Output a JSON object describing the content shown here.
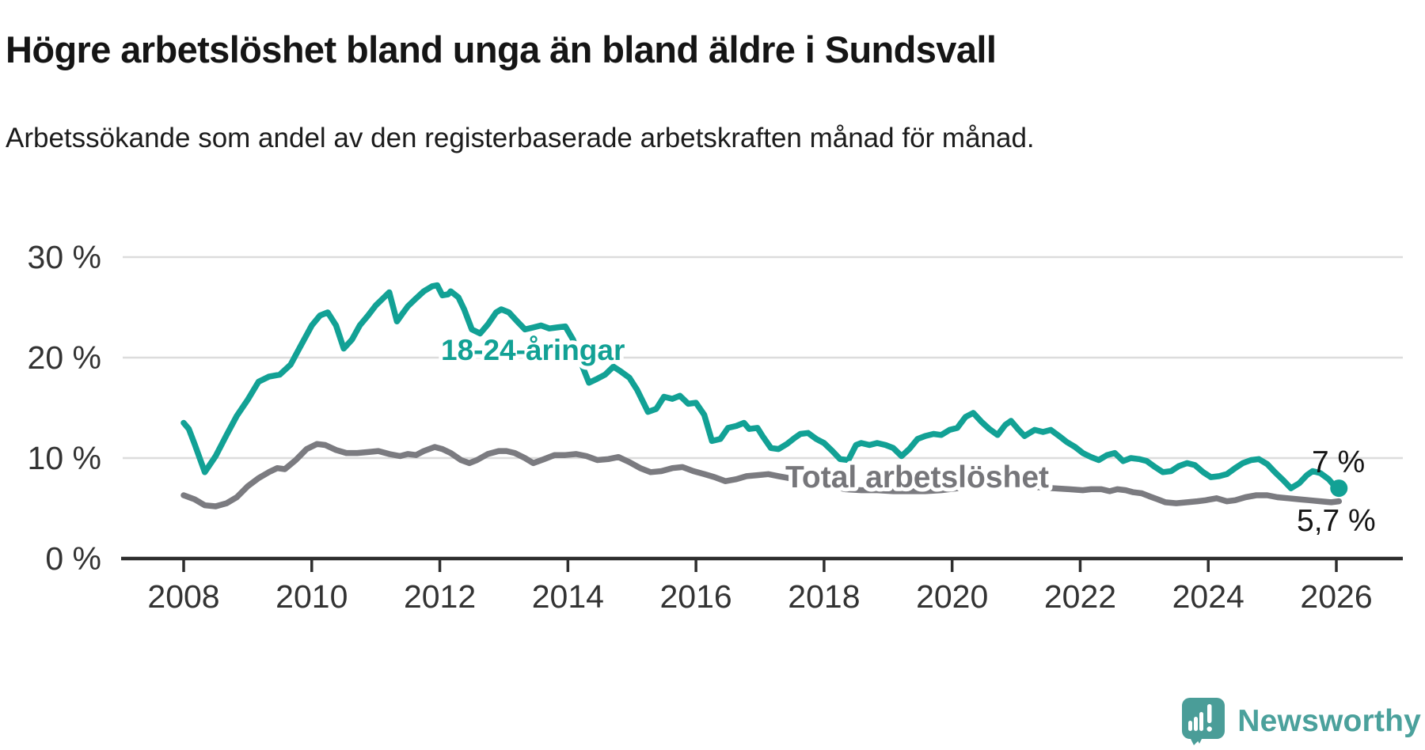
{
  "footer": {
    "brand": "Newsworthy"
  },
  "chart_data": {
    "type": "line",
    "title": "Högre arbetslöshet bland unga än bland äldre i Sundsvall",
    "subtitle": "Arbetssökande som andel av den registerbaserade arbetskraften månad för månad.",
    "xlabel": "",
    "ylabel": "",
    "xlim": [
      2007.9,
      2026.4
    ],
    "ylim": [
      0,
      30
    ],
    "grid": "horizontal",
    "legend_position": "inline-labels",
    "x_axis": {
      "ticks": [
        2008,
        2010,
        2012,
        2014,
        2016,
        2018,
        2020,
        2022,
        2024,
        2026
      ]
    },
    "y_axis": {
      "ticks": [
        {
          "value": 0,
          "label": "0 %"
        },
        {
          "value": 10,
          "label": "10 %"
        },
        {
          "value": 20,
          "label": "20 %"
        },
        {
          "value": 30,
          "label": "30 %"
        }
      ]
    },
    "series": [
      {
        "name": "18-24-åringar",
        "color": "#12a195",
        "end_label": "7 %",
        "end_value": 7.0,
        "end_dot": true,
        "points": [
          [
            2008.0,
            13.5
          ],
          [
            2008.08,
            12.9
          ],
          [
            2008.17,
            11.4
          ],
          [
            2008.33,
            8.6
          ],
          [
            2008.5,
            10.2
          ],
          [
            2008.67,
            12.3
          ],
          [
            2008.83,
            14.2
          ],
          [
            2009.0,
            15.8
          ],
          [
            2009.17,
            17.6
          ],
          [
            2009.33,
            18.1
          ],
          [
            2009.5,
            18.3
          ],
          [
            2009.67,
            19.3
          ],
          [
            2009.83,
            21.2
          ],
          [
            2010.0,
            23.2
          ],
          [
            2010.13,
            24.2
          ],
          [
            2010.25,
            24.5
          ],
          [
            2010.38,
            23.2
          ],
          [
            2010.5,
            20.9
          ],
          [
            2010.63,
            21.8
          ],
          [
            2010.75,
            23.2
          ],
          [
            2010.88,
            24.2
          ],
          [
            2011.0,
            25.2
          ],
          [
            2011.13,
            26.0
          ],
          [
            2011.21,
            26.5
          ],
          [
            2011.33,
            23.6
          ],
          [
            2011.42,
            24.4
          ],
          [
            2011.5,
            25.1
          ],
          [
            2011.63,
            25.9
          ],
          [
            2011.75,
            26.6
          ],
          [
            2011.88,
            27.1
          ],
          [
            2011.96,
            27.2
          ],
          [
            2012.04,
            26.2
          ],
          [
            2012.13,
            26.3
          ],
          [
            2012.17,
            26.6
          ],
          [
            2012.29,
            26.0
          ],
          [
            2012.38,
            24.8
          ],
          [
            2012.5,
            22.8
          ],
          [
            2012.63,
            22.4
          ],
          [
            2012.75,
            23.3
          ],
          [
            2012.88,
            24.5
          ],
          [
            2012.96,
            24.8
          ],
          [
            2013.08,
            24.5
          ],
          [
            2013.21,
            23.6
          ],
          [
            2013.33,
            22.8
          ],
          [
            2013.46,
            23.0
          ],
          [
            2013.58,
            23.2
          ],
          [
            2013.71,
            22.9
          ],
          [
            2013.83,
            23.0
          ],
          [
            2013.96,
            23.1
          ],
          [
            2014.08,
            21.8
          ],
          [
            2014.21,
            19.4
          ],
          [
            2014.33,
            17.5
          ],
          [
            2014.46,
            17.9
          ],
          [
            2014.58,
            18.3
          ],
          [
            2014.71,
            19.1
          ],
          [
            2014.83,
            18.6
          ],
          [
            2014.96,
            18.0
          ],
          [
            2015.08,
            16.8
          ],
          [
            2015.25,
            14.6
          ],
          [
            2015.38,
            14.9
          ],
          [
            2015.5,
            16.1
          ],
          [
            2015.63,
            15.9
          ],
          [
            2015.75,
            16.2
          ],
          [
            2015.88,
            15.4
          ],
          [
            2016.0,
            15.5
          ],
          [
            2016.13,
            14.3
          ],
          [
            2016.25,
            11.7
          ],
          [
            2016.38,
            11.9
          ],
          [
            2016.5,
            13.0
          ],
          [
            2016.63,
            13.2
          ],
          [
            2016.75,
            13.5
          ],
          [
            2016.83,
            12.9
          ],
          [
            2016.96,
            13.0
          ],
          [
            2017.04,
            12.2
          ],
          [
            2017.17,
            11.0
          ],
          [
            2017.29,
            10.9
          ],
          [
            2017.42,
            11.4
          ],
          [
            2017.54,
            12.0
          ],
          [
            2017.63,
            12.4
          ],
          [
            2017.75,
            12.5
          ],
          [
            2017.88,
            11.9
          ],
          [
            2018.0,
            11.5
          ],
          [
            2018.13,
            10.7
          ],
          [
            2018.25,
            9.9
          ],
          [
            2018.38,
            9.8
          ],
          [
            2018.5,
            11.3
          ],
          [
            2018.58,
            11.5
          ],
          [
            2018.71,
            11.3
          ],
          [
            2018.83,
            11.5
          ],
          [
            2018.96,
            11.3
          ],
          [
            2019.08,
            11.0
          ],
          [
            2019.21,
            10.2
          ],
          [
            2019.33,
            10.9
          ],
          [
            2019.46,
            11.9
          ],
          [
            2019.58,
            12.2
          ],
          [
            2019.71,
            12.4
          ],
          [
            2019.83,
            12.3
          ],
          [
            2019.96,
            12.8
          ],
          [
            2020.08,
            13.0
          ],
          [
            2020.21,
            14.1
          ],
          [
            2020.33,
            14.5
          ],
          [
            2020.46,
            13.6
          ],
          [
            2020.58,
            12.9
          ],
          [
            2020.71,
            12.3
          ],
          [
            2020.83,
            13.3
          ],
          [
            2020.92,
            13.7
          ],
          [
            2021.04,
            12.8
          ],
          [
            2021.13,
            12.2
          ],
          [
            2021.29,
            12.8
          ],
          [
            2021.42,
            12.6
          ],
          [
            2021.54,
            12.8
          ],
          [
            2021.67,
            12.2
          ],
          [
            2021.79,
            11.6
          ],
          [
            2021.92,
            11.1
          ],
          [
            2022.04,
            10.5
          ],
          [
            2022.17,
            10.1
          ],
          [
            2022.29,
            9.8
          ],
          [
            2022.42,
            10.3
          ],
          [
            2022.54,
            10.5
          ],
          [
            2022.67,
            9.7
          ],
          [
            2022.79,
            10.0
          ],
          [
            2022.92,
            9.9
          ],
          [
            2023.04,
            9.7
          ],
          [
            2023.17,
            9.1
          ],
          [
            2023.29,
            8.6
          ],
          [
            2023.42,
            8.7
          ],
          [
            2023.54,
            9.2
          ],
          [
            2023.67,
            9.5
          ],
          [
            2023.79,
            9.3
          ],
          [
            2023.92,
            8.6
          ],
          [
            2024.04,
            8.1
          ],
          [
            2024.17,
            8.2
          ],
          [
            2024.29,
            8.4
          ],
          [
            2024.42,
            9.0
          ],
          [
            2024.54,
            9.5
          ],
          [
            2024.67,
            9.8
          ],
          [
            2024.79,
            9.9
          ],
          [
            2024.92,
            9.4
          ],
          [
            2025.04,
            8.6
          ],
          [
            2025.17,
            7.8
          ],
          [
            2025.29,
            7.0
          ],
          [
            2025.42,
            7.5
          ],
          [
            2025.54,
            8.3
          ],
          [
            2025.63,
            8.7
          ],
          [
            2025.75,
            8.5
          ],
          [
            2025.88,
            7.9
          ],
          [
            2025.96,
            7.3
          ],
          [
            2026.04,
            7.0
          ]
        ]
      },
      {
        "name": "Total arbetslöshet",
        "color": "#7b7b80",
        "end_label": "5,7 %",
        "end_value": 5.7,
        "end_dot": false,
        "points": [
          [
            2008.0,
            6.3
          ],
          [
            2008.17,
            5.9
          ],
          [
            2008.33,
            5.3
          ],
          [
            2008.5,
            5.2
          ],
          [
            2008.67,
            5.5
          ],
          [
            2008.83,
            6.1
          ],
          [
            2009.0,
            7.2
          ],
          [
            2009.17,
            8.0
          ],
          [
            2009.33,
            8.6
          ],
          [
            2009.46,
            9.0
          ],
          [
            2009.58,
            8.9
          ],
          [
            2009.75,
            9.8
          ],
          [
            2009.92,
            10.9
          ],
          [
            2010.08,
            11.4
          ],
          [
            2010.21,
            11.3
          ],
          [
            2010.38,
            10.8
          ],
          [
            2010.54,
            10.5
          ],
          [
            2010.71,
            10.5
          ],
          [
            2010.88,
            10.6
          ],
          [
            2011.04,
            10.7
          ],
          [
            2011.21,
            10.4
          ],
          [
            2011.38,
            10.2
          ],
          [
            2011.5,
            10.4
          ],
          [
            2011.63,
            10.3
          ],
          [
            2011.75,
            10.7
          ],
          [
            2011.92,
            11.1
          ],
          [
            2012.04,
            10.9
          ],
          [
            2012.17,
            10.5
          ],
          [
            2012.33,
            9.8
          ],
          [
            2012.46,
            9.5
          ],
          [
            2012.58,
            9.8
          ],
          [
            2012.75,
            10.4
          ],
          [
            2012.92,
            10.7
          ],
          [
            2013.04,
            10.7
          ],
          [
            2013.17,
            10.5
          ],
          [
            2013.33,
            10.0
          ],
          [
            2013.46,
            9.5
          ],
          [
            2013.63,
            9.9
          ],
          [
            2013.79,
            10.3
          ],
          [
            2013.96,
            10.3
          ],
          [
            2014.13,
            10.4
          ],
          [
            2014.29,
            10.2
          ],
          [
            2014.46,
            9.8
          ],
          [
            2014.63,
            9.9
          ],
          [
            2014.79,
            10.1
          ],
          [
            2014.96,
            9.6
          ],
          [
            2015.13,
            9.0
          ],
          [
            2015.29,
            8.6
          ],
          [
            2015.46,
            8.7
          ],
          [
            2015.63,
            9.0
          ],
          [
            2015.79,
            9.1
          ],
          [
            2015.96,
            8.7
          ],
          [
            2016.13,
            8.4
          ],
          [
            2016.29,
            8.1
          ],
          [
            2016.46,
            7.7
          ],
          [
            2016.63,
            7.9
          ],
          [
            2016.79,
            8.2
          ],
          [
            2016.96,
            8.3
          ],
          [
            2017.13,
            8.4
          ],
          [
            2017.29,
            8.2
          ],
          [
            2017.46,
            8.0
          ],
          [
            2017.63,
            7.8
          ],
          [
            2017.79,
            7.7
          ],
          [
            2017.96,
            7.6
          ],
          [
            2018.13,
            7.2
          ],
          [
            2018.33,
            6.9
          ],
          [
            2018.58,
            6.8
          ],
          [
            2018.83,
            6.8
          ],
          [
            2019.08,
            6.7
          ],
          [
            2019.33,
            6.7
          ],
          [
            2019.58,
            6.7
          ],
          [
            2019.83,
            6.8
          ],
          [
            2020.08,
            7.0
          ],
          [
            2020.33,
            7.4
          ],
          [
            2020.58,
            7.5
          ],
          [
            2020.83,
            7.3
          ],
          [
            2021.08,
            7.2
          ],
          [
            2021.33,
            7.1
          ],
          [
            2021.58,
            7.0
          ],
          [
            2021.83,
            6.9
          ],
          [
            2022.04,
            6.8
          ],
          [
            2022.17,
            6.9
          ],
          [
            2022.33,
            6.9
          ],
          [
            2022.46,
            6.7
          ],
          [
            2022.58,
            6.9
          ],
          [
            2022.71,
            6.8
          ],
          [
            2022.83,
            6.6
          ],
          [
            2022.96,
            6.5
          ],
          [
            2023.08,
            6.2
          ],
          [
            2023.21,
            5.9
          ],
          [
            2023.33,
            5.6
          ],
          [
            2023.5,
            5.5
          ],
          [
            2023.67,
            5.6
          ],
          [
            2023.83,
            5.7
          ],
          [
            2023.96,
            5.8
          ],
          [
            2024.13,
            6.0
          ],
          [
            2024.29,
            5.7
          ],
          [
            2024.42,
            5.8
          ],
          [
            2024.58,
            6.1
          ],
          [
            2024.75,
            6.3
          ],
          [
            2024.92,
            6.3
          ],
          [
            2025.08,
            6.1
          ],
          [
            2025.25,
            6.0
          ],
          [
            2025.42,
            5.9
          ],
          [
            2025.58,
            5.8
          ],
          [
            2025.75,
            5.7
          ],
          [
            2025.92,
            5.6
          ],
          [
            2026.04,
            5.7
          ]
        ]
      }
    ],
    "colors": {
      "young": "#12a195",
      "total": "#7b7b80",
      "grid": "#dcdcdc",
      "axis": "#2e2e2e",
      "text": "#333333",
      "brand": "#4ba19c"
    }
  }
}
